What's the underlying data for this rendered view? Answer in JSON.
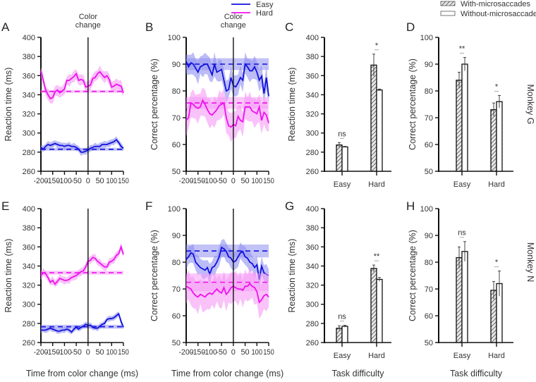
{
  "legend_lines": {
    "easy": "Easy",
    "hard": "Hard"
  },
  "legend_bars": {
    "with": "With-microsaccades",
    "without": "Without-microsaccades"
  },
  "colors": {
    "easy": "#1010e0",
    "hard": "#ee10ee",
    "easy_fill": "#9090f0",
    "hard_fill": "#f59af5"
  },
  "row_labels": [
    "Monkey G",
    "Monkey N"
  ],
  "chart_data": [
    {
      "panel": "A",
      "type": "line",
      "title": "Color change",
      "xlabel": "",
      "ylabel": "Reaction time (ms)",
      "xlim": [
        -200,
        150
      ],
      "ylim": [
        260,
        400
      ],
      "xticks": [
        -200,
        -150,
        -100,
        -50,
        0,
        50,
        100,
        150
      ],
      "yticks": [
        260,
        280,
        300,
        320,
        340,
        360,
        380,
        400
      ],
      "x": [
        -200,
        -190,
        -180,
        -170,
        -160,
        -150,
        -140,
        -130,
        -120,
        -110,
        -100,
        -90,
        -80,
        -70,
        -60,
        -50,
        -40,
        -30,
        -20,
        -10,
        0,
        10,
        20,
        30,
        40,
        50,
        60,
        70,
        80,
        90,
        100,
        110,
        120,
        130,
        140,
        150
      ],
      "series": [
        {
          "name": "Easy",
          "values": [
            285,
            283,
            286,
            288,
            287,
            288,
            289,
            288,
            287,
            287,
            286,
            287,
            287,
            286,
            286,
            285,
            283,
            280,
            280,
            281,
            282,
            284,
            285,
            286,
            286,
            286,
            288,
            288,
            288,
            289,
            290,
            291,
            293,
            290,
            286,
            284
          ],
          "ci": 3,
          "baseline": 283,
          "baseline_ci": 1.5
        },
        {
          "name": "Hard",
          "values": [
            365,
            355,
            345,
            340,
            336,
            337,
            343,
            345,
            342,
            344,
            346,
            355,
            355,
            357,
            359,
            362,
            355,
            356,
            355,
            348,
            349,
            350,
            357,
            358,
            362,
            364,
            361,
            358,
            360,
            356,
            348,
            349,
            351,
            350,
            349,
            342
          ],
          "ci": 5,
          "baseline": 343.5,
          "baseline_ci": 1.5
        }
      ]
    },
    {
      "panel": "B",
      "type": "line",
      "title": "Color change",
      "xlabel": "",
      "ylabel": "Correct percentage (%)",
      "xlim": [
        -200,
        150
      ],
      "ylim": [
        50,
        100
      ],
      "xticks": [
        -200,
        -150,
        -100,
        -50,
        0,
        50,
        100,
        150
      ],
      "yticks": [
        50,
        60,
        70,
        80,
        90,
        100
      ],
      "x": [
        -200,
        -190,
        -180,
        -170,
        -160,
        -150,
        -140,
        -130,
        -120,
        -110,
        -100,
        -90,
        -80,
        -70,
        -60,
        -50,
        -40,
        -30,
        -20,
        -10,
        0,
        10,
        20,
        30,
        40,
        50,
        60,
        70,
        80,
        90,
        100,
        110,
        120,
        130,
        140,
        150
      ],
      "series": [
        {
          "name": "Easy",
          "values": [
            91,
            89,
            90.5,
            90,
            88.5,
            87,
            89,
            89.5,
            90,
            90,
            88,
            86,
            90,
            87,
            87.5,
            88,
            84,
            80,
            80.5,
            85,
            82,
            81.5,
            83,
            85,
            84,
            90,
            89,
            87.5,
            87.5,
            89,
            87,
            84,
            85.5,
            79,
            85,
            78
          ],
          "ci": 3.5,
          "baseline": 90,
          "baseline_ci": 2.2
        },
        {
          "name": "Hard",
          "values": [
            69,
            70,
            75.5,
            75,
            74,
            73.5,
            74,
            76.5,
            75,
            73,
            71.5,
            71,
            72,
            73,
            74.5,
            75,
            75.5,
            70,
            67,
            66.5,
            67.5,
            67,
            70.5,
            69,
            68.5,
            74,
            74,
            74,
            72.5,
            72,
            71.5,
            74,
            69,
            72,
            71,
            68
          ],
          "ci": 4.5,
          "baseline": 75.5,
          "baseline_ci": 2.2
        }
      ]
    },
    {
      "panel": "C",
      "type": "bar",
      "xlabel": "",
      "ylabel": "Reaction time (ms)",
      "ylim": [
        260,
        400
      ],
      "yticks": [
        260,
        280,
        300,
        320,
        340,
        360,
        380,
        400
      ],
      "categories": [
        "Easy",
        "Hard"
      ],
      "series": [
        {
          "name": "With-microsaccades",
          "values": [
            287.5,
            371
          ],
          "err": [
            2.5,
            11.5
          ]
        },
        {
          "name": "Without-microsaccades",
          "values": [
            285.5,
            345
          ],
          "err": [
            0.5,
            1
          ]
        }
      ],
      "significance": [
        "ns",
        "*"
      ]
    },
    {
      "panel": "D",
      "type": "bar",
      "xlabel": "",
      "ylabel": "Correct percentage (%)",
      "ylim": [
        50,
        100
      ],
      "yticks": [
        50,
        60,
        70,
        80,
        90,
        100
      ],
      "categories": [
        "Easy",
        "Hard"
      ],
      "series": [
        {
          "name": "With-microsaccades",
          "values": [
            84,
            73
          ],
          "err": [
            3,
            2.5
          ]
        },
        {
          "name": "Without-microsaccades",
          "values": [
            90,
            76
          ],
          "err": [
            2.5,
            2.3
          ]
        }
      ],
      "significance": [
        "**",
        "*"
      ]
    },
    {
      "panel": "E",
      "type": "line",
      "title": "",
      "xlabel": "Time from color change (ms)",
      "ylabel": "Reaction time (ms)",
      "xlim": [
        -200,
        150
      ],
      "ylim": [
        260,
        400
      ],
      "xticks": [
        -200,
        -150,
        -100,
        -50,
        0,
        50,
        100,
        150
      ],
      "yticks": [
        260,
        280,
        300,
        320,
        340,
        360,
        380,
        400
      ],
      "x": [
        -200,
        -190,
        -180,
        -170,
        -160,
        -150,
        -140,
        -130,
        -120,
        -110,
        -100,
        -90,
        -80,
        -70,
        -60,
        -50,
        -40,
        -30,
        -20,
        -10,
        0,
        10,
        20,
        30,
        40,
        50,
        60,
        70,
        80,
        90,
        100,
        110,
        120,
        130,
        140,
        150
      ],
      "series": [
        {
          "name": "Easy",
          "values": [
            273,
            273,
            273,
            274,
            275,
            274,
            273,
            272,
            272,
            273,
            273,
            274,
            273,
            271,
            274,
            276,
            274,
            276,
            277,
            279,
            278,
            278,
            276,
            275,
            275,
            277,
            279,
            280,
            284,
            285,
            285,
            286,
            288,
            290,
            282,
            276
          ],
          "ci": 2.5,
          "baseline": 276.5,
          "baseline_ci": 2
        },
        {
          "name": "Hard",
          "values": [
            330,
            333,
            332,
            328,
            323,
            325,
            321,
            324,
            327,
            326,
            325,
            325,
            326,
            328,
            329,
            330,
            332,
            334,
            335,
            339,
            345,
            346,
            349,
            348,
            345,
            343,
            341,
            339,
            339,
            344,
            345,
            347,
            351,
            353,
            360,
            352
          ],
          "ci": 3.5,
          "baseline": 333,
          "baseline_ci": 2
        }
      ]
    },
    {
      "panel": "F",
      "type": "line",
      "title": "",
      "xlabel": "Time from color change (ms)",
      "ylabel": "Correct percentage (%)",
      "xlim": [
        -200,
        150
      ],
      "ylim": [
        50,
        100
      ],
      "xticks": [
        -200,
        -150,
        -100,
        -50,
        0,
        50,
        100,
        150
      ],
      "yticks": [
        50,
        60,
        70,
        80,
        90,
        100
      ],
      "x": [
        -200,
        -190,
        -180,
        -170,
        -160,
        -150,
        -140,
        -130,
        -120,
        -110,
        -100,
        -90,
        -80,
        -70,
        -60,
        -50,
        -40,
        -30,
        -20,
        -10,
        0,
        10,
        20,
        30,
        40,
        50,
        60,
        70,
        80,
        90,
        100,
        110,
        120,
        130,
        140,
        150
      ],
      "series": [
        {
          "name": "Easy",
          "values": [
            81,
            82,
            83.5,
            83,
            80,
            79,
            78,
            77.5,
            77,
            78,
            75.5,
            78,
            78.5,
            80,
            82,
            85.5,
            85,
            84,
            82,
            81.5,
            80,
            80.5,
            82,
            83.5,
            84,
            82,
            81.5,
            80,
            79.5,
            78,
            79,
            73.5,
            78.5,
            76,
            75.5,
            75
          ],
          "ci": 3,
          "baseline": 84.2,
          "baseline_ci": 2.4
        },
        {
          "name": "Hard",
          "values": [
            71,
            70.5,
            70,
            68.5,
            67.5,
            67,
            68,
            67.5,
            67,
            68,
            68.5,
            68,
            69,
            70,
            69,
            68.5,
            70.5,
            68,
            69,
            70.5,
            71,
            70.5,
            70,
            70,
            69.5,
            71,
            71,
            72,
            71,
            70.5,
            69,
            65,
            66,
            67.5,
            68,
            67
          ],
          "ci": 5,
          "baseline": 72.5,
          "baseline_ci": 3.3
        }
      ]
    },
    {
      "panel": "G",
      "type": "bar",
      "xlabel": "Task difficulty",
      "ylabel": "Reaction time (ms)",
      "ylim": [
        260,
        400
      ],
      "yticks": [
        260,
        280,
        300,
        320,
        340,
        360,
        380,
        400
      ],
      "categories": [
        "Easy",
        "Hard"
      ],
      "series": [
        {
          "name": "With-microsaccades",
          "values": [
            275,
            337.5
          ],
          "err": [
            2.5,
            3.5
          ]
        },
        {
          "name": "Without-microsaccades",
          "values": [
            277,
            326
          ],
          "err": [
            1,
            2
          ]
        }
      ],
      "significance": [
        "ns",
        "**"
      ]
    },
    {
      "panel": "H",
      "type": "bar",
      "xlabel": "Task difficulty",
      "ylabel": "Correct percentage (%)",
      "ylim": [
        50,
        100
      ],
      "yticks": [
        50,
        60,
        70,
        80,
        90,
        100
      ],
      "categories": [
        "Easy",
        "Hard"
      ],
      "series": [
        {
          "name": "With-microsaccades",
          "values": [
            81.7,
            69.5
          ],
          "err": [
            4,
            3.3
          ]
        },
        {
          "name": "Without-microsaccades",
          "values": [
            84,
            72
          ],
          "err": [
            3.7,
            4.7
          ]
        }
      ],
      "significance": [
        "ns",
        "*"
      ]
    }
  ]
}
